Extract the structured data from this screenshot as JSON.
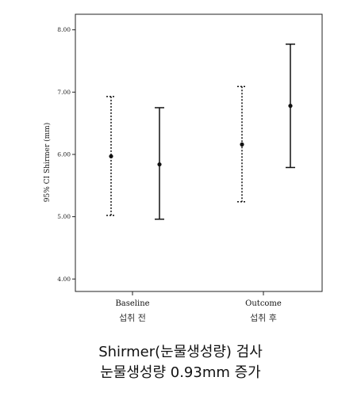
{
  "chart_data": {
    "type": "errorbar",
    "ylabel": "95% CI Shirmer (mm)",
    "ylim": [
      3.8,
      8.25
    ],
    "yticks": [
      4.0,
      5.0,
      6.0,
      7.0,
      8.0
    ],
    "ytick_labels": [
      "4.00",
      "5.00",
      "6.00",
      "7.00",
      "8.00"
    ],
    "categories": [
      "Baseline",
      "Outcome"
    ],
    "category_sublabels": [
      "섭취 전",
      "섭취 후"
    ],
    "series": [
      {
        "line_style": "dashed",
        "values": [
          {
            "category": "Baseline",
            "mean": 5.97,
            "lower": 5.02,
            "upper": 6.93
          },
          {
            "category": "Outcome",
            "mean": 6.16,
            "lower": 5.24,
            "upper": 7.09
          }
        ]
      },
      {
        "line_style": "solid",
        "values": [
          {
            "category": "Baseline",
            "mean": 5.84,
            "lower": 4.96,
            "upper": 6.75
          },
          {
            "category": "Outcome",
            "mean": 6.78,
            "lower": 5.79,
            "upper": 7.77
          }
        ]
      }
    ],
    "grid": false,
    "legend": false
  },
  "caption": {
    "line1": "Shirmer(눈물생성량) 검사",
    "line2": "눈물생성량 0.93mm 증가"
  }
}
